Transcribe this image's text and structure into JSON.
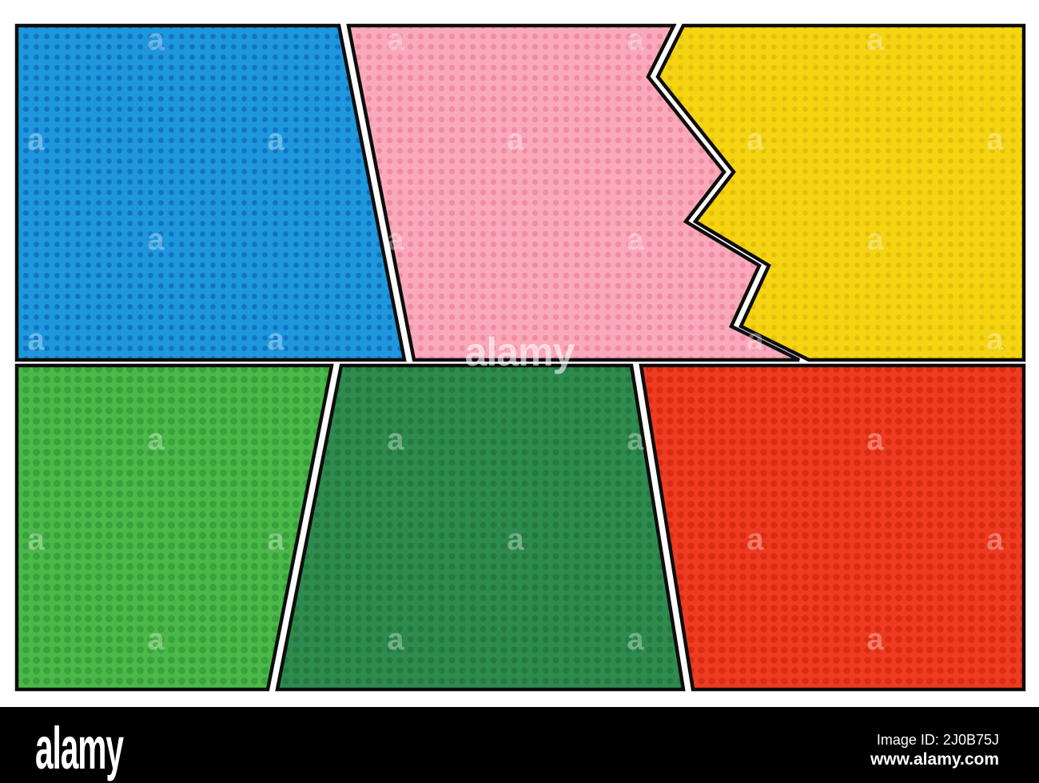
{
  "image_description": "Pop art comic book style background with six colorful halftone panels",
  "background_color": "#ffffff",
  "panel_border_color": "#0d0d0d",
  "panels": [
    {
      "key": "top-left-blue",
      "base_color": "#1e97dc",
      "dot_color": "#1173c4"
    },
    {
      "key": "top-center-pink",
      "base_color": "#f9a9b9",
      "dot_color": "#ef8da4"
    },
    {
      "key": "top-right-yellow",
      "base_color": "#f5d411",
      "dot_color": "#e4bf0b"
    },
    {
      "key": "bottom-left-green",
      "base_color": "#4bb94a",
      "dot_color": "#3aa23c"
    },
    {
      "key": "bottom-center-darkgreen",
      "base_color": "#2e8b4f",
      "dot_color": "#25793f"
    },
    {
      "key": "bottom-right-red",
      "base_color": "#ee3b22",
      "dot_color": "#d92d12"
    }
  ],
  "watermark": {
    "tile_text": "a",
    "center_text": "alamy"
  },
  "footer": {
    "bar_color": "#000000",
    "logo": "alamy",
    "image_id_label": "Image ID: 2J0B75J",
    "website": "www.alamy.com"
  }
}
